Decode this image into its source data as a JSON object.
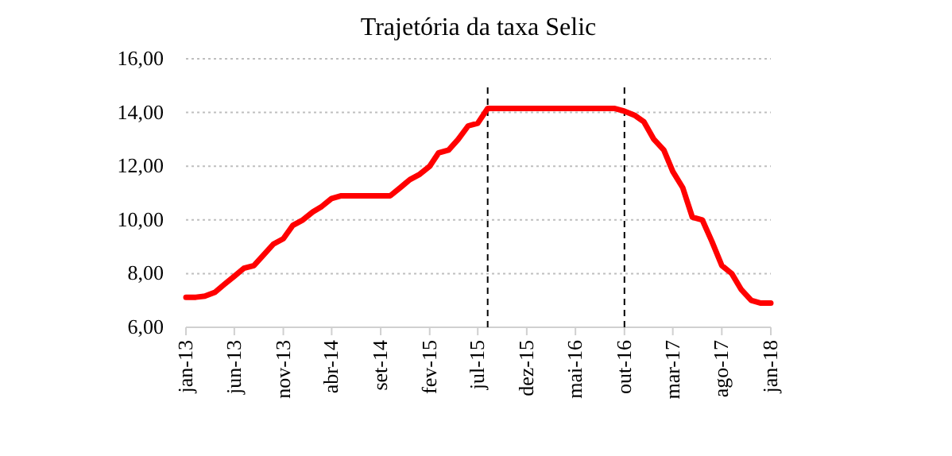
{
  "chart_data": {
    "type": "line",
    "title": "Trajetória da taxa Selic",
    "x": [
      "2013-01",
      "2013-02",
      "2013-03",
      "2013-04",
      "2013-05",
      "2013-06",
      "2013-07",
      "2013-08",
      "2013-09",
      "2013-10",
      "2013-11",
      "2013-12",
      "2014-01",
      "2014-02",
      "2014-03",
      "2014-04",
      "2014-05",
      "2014-06",
      "2014-07",
      "2014-08",
      "2014-09",
      "2014-10",
      "2014-11",
      "2014-12",
      "2015-01",
      "2015-02",
      "2015-03",
      "2015-04",
      "2015-05",
      "2015-06",
      "2015-07",
      "2015-08",
      "2015-09",
      "2015-10",
      "2015-11",
      "2015-12",
      "2016-01",
      "2016-02",
      "2016-03",
      "2016-04",
      "2016-05",
      "2016-06",
      "2016-07",
      "2016-08",
      "2016-09",
      "2016-10",
      "2016-11",
      "2016-12",
      "2017-01",
      "2017-02",
      "2017-03",
      "2017-04",
      "2017-05",
      "2017-06",
      "2017-07",
      "2017-08",
      "2017-09",
      "2017-10",
      "2017-11",
      "2017-12",
      "2018-01"
    ],
    "series": [
      {
        "color": "#ff0000",
        "values": [
          7.12,
          7.12,
          7.16,
          7.3,
          7.6,
          7.9,
          8.2,
          8.3,
          8.7,
          9.1,
          9.3,
          9.8,
          10.0,
          10.3,
          10.5,
          10.8,
          10.9,
          10.9,
          10.9,
          10.9,
          10.9,
          10.9,
          11.2,
          11.5,
          11.7,
          12.0,
          12.5,
          12.6,
          13.0,
          13.5,
          13.6,
          14.15,
          14.15,
          14.15,
          14.15,
          14.15,
          14.15,
          14.15,
          14.15,
          14.15,
          14.15,
          14.15,
          14.15,
          14.15,
          14.15,
          14.05,
          13.9,
          13.65,
          13.0,
          12.6,
          11.8,
          11.2,
          10.1,
          10.0,
          9.2,
          8.3,
          8.0,
          7.4,
          7.0,
          6.9,
          6.9
        ]
      }
    ],
    "xlim": [
      "2013-01",
      "2018-01"
    ],
    "xticks": [
      {
        "value": "2013-01",
        "label": "jan-13"
      },
      {
        "value": "2013-06",
        "label": "jun-13"
      },
      {
        "value": "2013-11",
        "label": "nov-13"
      },
      {
        "value": "2014-04",
        "label": "abr-14"
      },
      {
        "value": "2014-09",
        "label": "set-14"
      },
      {
        "value": "2015-02",
        "label": "fev-15"
      },
      {
        "value": "2015-07",
        "label": "jul-15"
      },
      {
        "value": "2015-12",
        "label": "dez-15"
      },
      {
        "value": "2016-05",
        "label": "mai-16"
      },
      {
        "value": "2016-10",
        "label": "out-16"
      },
      {
        "value": "2017-03",
        "label": "mar-17"
      },
      {
        "value": "2017-08",
        "label": "ago-17"
      },
      {
        "value": "2018-01",
        "label": "jan-18"
      }
    ],
    "ylim": [
      6,
      16
    ],
    "yticks": [
      {
        "value": 6,
        "label": "6,00"
      },
      {
        "value": 8,
        "label": "8,00"
      },
      {
        "value": 10,
        "label": "10,00"
      },
      {
        "value": 12,
        "label": "12,00"
      },
      {
        "value": 14,
        "label": "14,00"
      },
      {
        "value": 16,
        "label": "16,00"
      }
    ],
    "grid": "y",
    "marker": "none",
    "line_style": "solid",
    "ref_lines": [
      {
        "axis": "x",
        "value": "2015-08",
        "color": "#000000",
        "line_style": "dashed"
      },
      {
        "axis": "x",
        "value": "2016-10",
        "color": "#000000",
        "line_style": "dashed"
      }
    ]
  }
}
